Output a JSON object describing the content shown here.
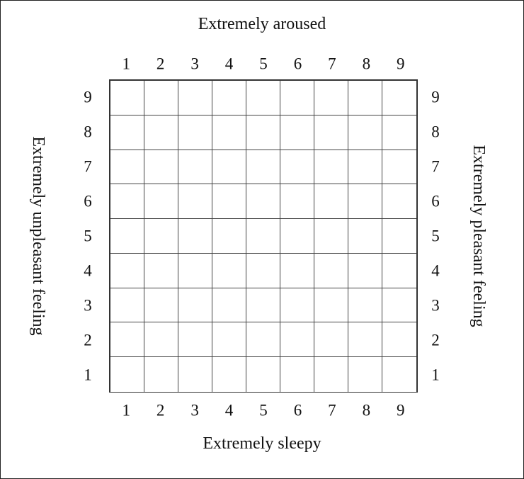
{
  "labels": {
    "top": "Extremely aroused",
    "bottom": "Extremely sleepy",
    "left": "Extremely unpleasant feeling",
    "right": "Extremely pleasant feeling"
  },
  "columns": [
    "1",
    "2",
    "3",
    "4",
    "5",
    "6",
    "7",
    "8",
    "9"
  ],
  "rows": [
    "9",
    "8",
    "7",
    "6",
    "5",
    "4",
    "3",
    "2",
    "1"
  ]
}
